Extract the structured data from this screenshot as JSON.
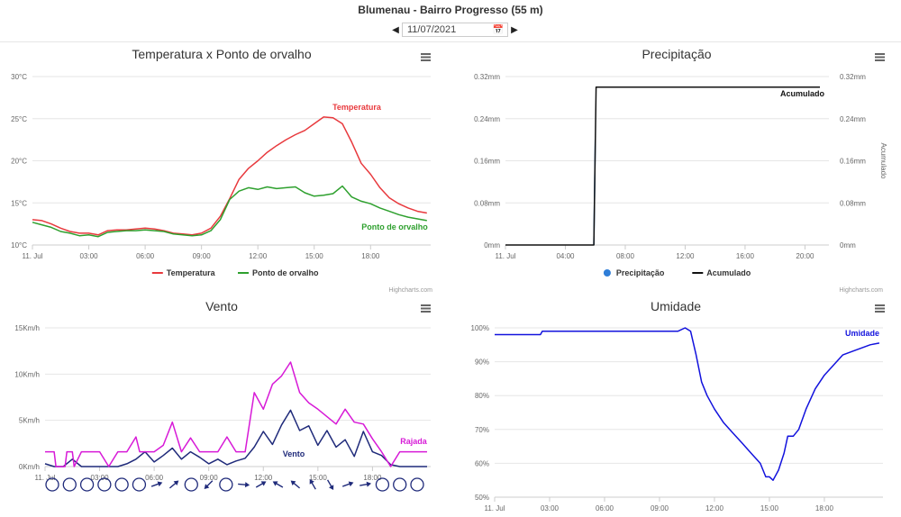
{
  "header": {
    "station": "Blumenau - Bairro Progresso (55 m)",
    "date_value": "11/07/2021",
    "prev_icon": "caret-left-icon",
    "next_icon": "caret-right-icon",
    "calendar_icon": "calendar-icon"
  },
  "credits": "Highcharts.com",
  "menu_icon": "hamburger-menu-icon",
  "chart_data": [
    {
      "id": "temp",
      "type": "line",
      "title": "Temperatura x Ponto de orvalho",
      "x_ticks": [
        "11. Jul",
        "03:00",
        "06:00",
        "09:00",
        "12:00",
        "15:00",
        "18:00"
      ],
      "x_tick_hours": [
        0,
        3,
        6,
        9,
        12,
        15,
        18
      ],
      "xlim_hours": [
        0,
        21.2
      ],
      "y_ticks": [
        "10°C",
        "15°C",
        "20°C",
        "25°C",
        "30°C"
      ],
      "ylim": [
        10,
        30
      ],
      "legend": [
        "Temperatura",
        "Ponto de orvalho"
      ],
      "legend_position": "bottom",
      "series": [
        {
          "name": "Temperatura",
          "color": "#e8393d",
          "label": "Temperatura",
          "x": [
            0,
            0.5,
            1,
            1.5,
            2,
            2.5,
            3,
            3.5,
            4,
            4.5,
            5,
            5.5,
            6,
            6.5,
            7,
            7.5,
            8,
            8.5,
            9,
            9.5,
            10,
            10.5,
            11,
            11.5,
            12,
            12.5,
            13,
            13.5,
            14,
            14.5,
            15,
            15.5,
            16,
            16.5,
            17,
            17.5,
            18,
            18.5,
            19,
            19.5,
            20,
            20.5,
            21
          ],
          "y": [
            13.0,
            12.9,
            12.5,
            12.0,
            11.6,
            11.4,
            11.4,
            11.2,
            11.7,
            11.8,
            11.8,
            11.9,
            12.0,
            11.9,
            11.7,
            11.4,
            11.3,
            11.2,
            11.4,
            12.0,
            13.4,
            15.5,
            17.8,
            19.1,
            20.0,
            21.0,
            21.8,
            22.5,
            23.1,
            23.6,
            24.4,
            25.2,
            25.1,
            24.4,
            22.2,
            19.7,
            18.4,
            16.8,
            15.6,
            14.9,
            14.4,
            14.0,
            13.8
          ]
        },
        {
          "name": "Ponto de orvalho",
          "color": "#2ea02e",
          "label": "Ponto de orvalho",
          "x": [
            0,
            0.5,
            1,
            1.5,
            2,
            2.5,
            3,
            3.5,
            4,
            4.5,
            5,
            5.5,
            6,
            6.5,
            7,
            7.5,
            8,
            8.5,
            9,
            9.5,
            10,
            10.5,
            11,
            11.5,
            12,
            12.5,
            13,
            13.5,
            14,
            14.5,
            15,
            15.5,
            16,
            16.5,
            17,
            17.5,
            18,
            18.5,
            19,
            19.5,
            20,
            20.5,
            21
          ],
          "y": [
            12.7,
            12.4,
            12.1,
            11.6,
            11.4,
            11.1,
            11.2,
            11.0,
            11.5,
            11.6,
            11.7,
            11.7,
            11.8,
            11.7,
            11.6,
            11.3,
            11.2,
            11.1,
            11.2,
            11.7,
            13.0,
            15.4,
            16.4,
            16.8,
            16.6,
            16.9,
            16.7,
            16.8,
            16.9,
            16.2,
            15.8,
            15.9,
            16.1,
            17.0,
            15.7,
            15.2,
            14.9,
            14.4,
            14.0,
            13.6,
            13.3,
            13.1,
            12.9
          ]
        }
      ]
    },
    {
      "id": "prec",
      "type": "line",
      "title": "Precipitação",
      "x_ticks": [
        "11. Jul",
        "04:00",
        "08:00",
        "12:00",
        "16:00",
        "20:00"
      ],
      "x_tick_hours": [
        0,
        4,
        8,
        12,
        16,
        20
      ],
      "xlim_hours": [
        0,
        21.6
      ],
      "y_ticks": [
        "0mm",
        "0.08mm",
        "0.16mm",
        "0.24mm",
        "0.32mm"
      ],
      "y_ticks_right": [
        "0mm",
        "0.08mm",
        "0.16mm",
        "0.24mm",
        "0.32mm"
      ],
      "ylim": [
        0,
        0.32
      ],
      "ylabel_right": "Acumulado",
      "legend": [
        "Precipitação",
        "Acumulado"
      ],
      "legend_position": "bottom",
      "series": [
        {
          "name": "Precipitação",
          "color": "#2f7ed8",
          "x": [
            5.9,
            6.0
          ],
          "y": [
            0.0,
            0.2
          ]
        },
        {
          "name": "Acumulado",
          "color": "#111111",
          "label": "Acumulado",
          "x": [
            0,
            5.9,
            6.05,
            21
          ],
          "y": [
            0,
            0,
            0.3,
            0.3
          ]
        }
      ]
    },
    {
      "id": "wind",
      "type": "line",
      "title": "Vento",
      "x_ticks": [
        "11. Jul",
        "03:00",
        "06:00",
        "09:00",
        "12:00",
        "15:00",
        "18:00"
      ],
      "x_tick_hours": [
        0,
        3,
        6,
        9,
        12,
        15,
        18
      ],
      "xlim_hours": [
        0,
        21.2
      ],
      "y_ticks": [
        "0Km/h",
        "5Km/h",
        "10Km/h",
        "15Km/h"
      ],
      "ylim": [
        0,
        15
      ],
      "series": [
        {
          "name": "Vento",
          "color": "#1f2a7a",
          "label": "Vento",
          "x": [
            0,
            0.5,
            1,
            1.5,
            2,
            2.5,
            3,
            3.5,
            4,
            4.5,
            5,
            5.5,
            6,
            6.5,
            7,
            7.5,
            8,
            8.5,
            9,
            9.5,
            10,
            10.5,
            11,
            11.5,
            12,
            12.5,
            13,
            13.5,
            14,
            14.5,
            15,
            15.5,
            16,
            16.5,
            17,
            17.5,
            18,
            18.5,
            19,
            19.5,
            20,
            20.5,
            21
          ],
          "y": [
            0.3,
            0,
            0,
            0.8,
            0,
            0,
            0,
            0,
            0,
            0.3,
            0.8,
            1.6,
            0.5,
            1.2,
            2.0,
            0.8,
            1.6,
            1.0,
            0.3,
            0.8,
            0.2,
            0.6,
            0.9,
            2.1,
            3.8,
            2.4,
            4.5,
            6.1,
            3.9,
            4.4,
            2.3,
            3.9,
            2.1,
            2.9,
            1.1,
            3.8,
            1.6,
            1.2,
            0.2,
            0,
            0,
            0,
            0
          ]
        },
        {
          "name": "Rajada",
          "color": "#d71ad7",
          "label": "Rajada",
          "x": [
            0,
            0.5,
            0.6,
            1.1,
            1.2,
            1.5,
            1.6,
            2,
            2.5,
            3,
            3.5,
            4,
            4.5,
            5,
            5.2,
            5.5,
            6,
            6.5,
            7,
            7.5,
            8,
            8.5,
            9,
            9.5,
            10,
            10.5,
            11,
            11.5,
            12,
            12.5,
            13,
            13.5,
            14,
            14.5,
            15,
            15.5,
            16,
            16.5,
            17,
            17.5,
            18,
            18.5,
            19,
            19.5,
            20,
            20.5,
            21
          ],
          "y": [
            1.6,
            1.6,
            0,
            0,
            1.6,
            1.6,
            0,
            1.6,
            1.6,
            1.6,
            0,
            1.6,
            1.6,
            3.2,
            1.6,
            1.6,
            1.6,
            2.3,
            4.8,
            1.6,
            3.1,
            1.6,
            1.6,
            1.6,
            3.2,
            1.6,
            1.6,
            8.0,
            6.2,
            8.9,
            9.8,
            11.3,
            8.0,
            6.9,
            6.2,
            5.4,
            4.6,
            6.2,
            4.8,
            4.6,
            3.0,
            1.6,
            0,
            1.6,
            1.6,
            1.6,
            1.6
          ]
        }
      ],
      "direction_markers": [
        "calm",
        "calm",
        "calm",
        "calm",
        "calm",
        "calm",
        "arrow",
        "arrow",
        "calm",
        "arrow",
        "calm",
        "arrow",
        "arrow",
        "arrow",
        "arrow",
        "arrow",
        "arrow",
        "arrow",
        "arrow",
        "calm",
        "calm",
        "calm"
      ],
      "direction_angles": [
        0,
        0,
        0,
        0,
        0,
        0,
        -20,
        -40,
        0,
        135,
        0,
        5,
        -30,
        -150,
        -140,
        -120,
        60,
        -20,
        -10,
        0,
        0,
        0
      ]
    },
    {
      "id": "humid",
      "type": "line",
      "title": "Umidade",
      "x_ticks": [
        "11. Jul",
        "03:00",
        "06:00",
        "09:00",
        "12:00",
        "15:00",
        "18:00"
      ],
      "x_tick_hours": [
        0,
        3,
        6,
        9,
        12,
        15,
        18
      ],
      "xlim_hours": [
        0,
        21.2
      ],
      "y_ticks": [
        "50%",
        "60%",
        "70%",
        "80%",
        "90%",
        "100%"
      ],
      "ylim": [
        50,
        100
      ],
      "series": [
        {
          "name": "Umidade",
          "color": "#1212dd",
          "label": "Umidade",
          "x": [
            0,
            1,
            2,
            2.5,
            2.6,
            3,
            4,
            5,
            6,
            7,
            8,
            9,
            10,
            10.4,
            10.7,
            11,
            11.3,
            11.6,
            12,
            12.5,
            13,
            13.5,
            14,
            14.5,
            14.8,
            15,
            15.2,
            15.5,
            15.8,
            16,
            16.3,
            16.6,
            17,
            17.5,
            18,
            18.5,
            19,
            19.5,
            20,
            20.5,
            21
          ],
          "y": [
            98,
            98,
            98,
            98,
            99,
            99,
            99,
            99,
            99,
            99,
            99,
            99,
            99,
            100,
            99,
            92,
            84,
            80,
            76,
            72,
            69,
            66,
            63,
            60,
            56,
            56,
            55,
            58,
            63,
            68,
            68,
            70,
            76,
            82,
            86,
            89,
            92,
            93,
            94,
            95,
            95.5
          ]
        }
      ]
    }
  ]
}
